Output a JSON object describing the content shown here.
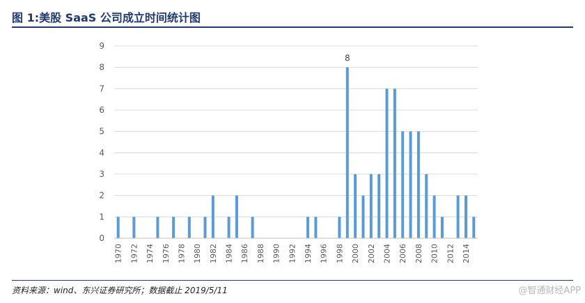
{
  "header": {
    "title": "图 1:美股 SaaS 公司成立时间统计图"
  },
  "footer": {
    "source": "资料来源：wind、东兴证券研究所；数据截止 2019/5/11",
    "watermark": "@智通财经APP"
  },
  "colors": {
    "bar": "#5b9bd5",
    "title": "#1f3a6e",
    "axis": "#bfbfbf",
    "grid": "#d9d9d9",
    "tick_text": "#595959"
  },
  "chart_data": {
    "type": "bar",
    "title": "",
    "xlabel": "",
    "ylabel": "",
    "ylim": [
      0,
      9
    ],
    "yticks": [
      0,
      1,
      2,
      3,
      4,
      5,
      6,
      7,
      8,
      9
    ],
    "grid": true,
    "legend": "none",
    "categories": [
      1970,
      1971,
      1972,
      1973,
      1974,
      1975,
      1976,
      1977,
      1978,
      1979,
      1980,
      1981,
      1982,
      1983,
      1984,
      1985,
      1986,
      1987,
      1988,
      1989,
      1990,
      1991,
      1992,
      1993,
      1994,
      1995,
      1996,
      1997,
      1998,
      1999,
      2000,
      2001,
      2002,
      2003,
      2004,
      2005,
      2006,
      2007,
      2008,
      2009,
      2010,
      2011,
      2012,
      2013,
      2014,
      2015
    ],
    "tick_labels": [
      "1970",
      "1972",
      "1974",
      "1976",
      "1978",
      "1980",
      "1982",
      "1984",
      "1986",
      "1988",
      "1990",
      "1992",
      "1994",
      "1996",
      "1998",
      "2000",
      "2002",
      "2004",
      "2006",
      "2008",
      "2010",
      "2012",
      "2014"
    ],
    "values": [
      1,
      0,
      1,
      0,
      0,
      1,
      0,
      1,
      0,
      1,
      0,
      1,
      2,
      0,
      1,
      2,
      0,
      1,
      0,
      0,
      0,
      0,
      0,
      0,
      1,
      1,
      0,
      0,
      1,
      8,
      3,
      2,
      3,
      3,
      7,
      7,
      5,
      5,
      5,
      3,
      2,
      1,
      0,
      2,
      2,
      1
    ],
    "data_labels": [
      {
        "category": 1999,
        "text": "8"
      }
    ]
  }
}
